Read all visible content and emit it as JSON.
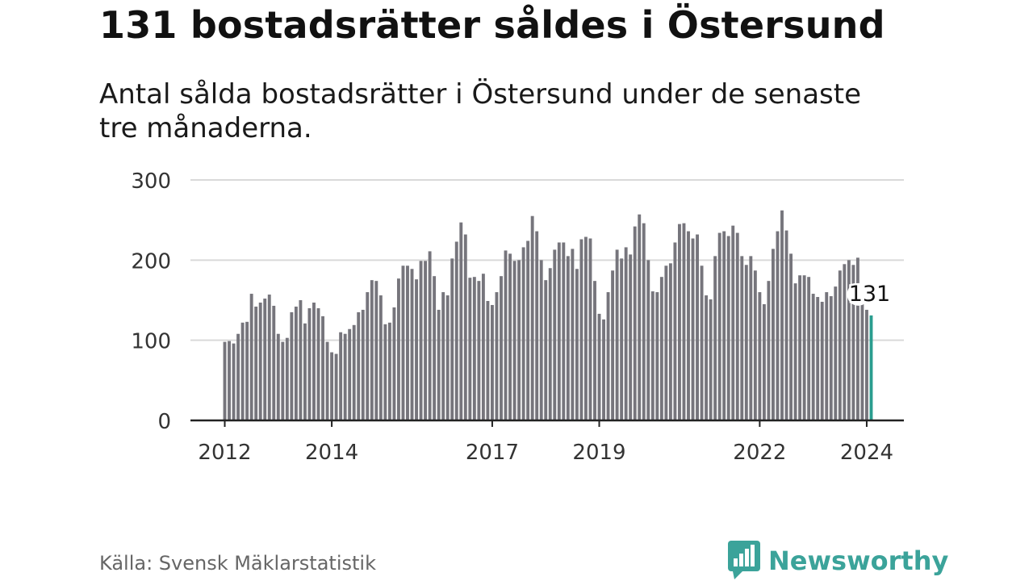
{
  "title": "131 bostadsrätter såldes i Östersund",
  "subtitle": "Antal sålda bostadsrätter i Östersund under de senaste tre månaderna.",
  "source": "Källa: Svensk Mäklarstatistik",
  "brand": {
    "name": "Newsworthy",
    "logo_icon": "bar-chart-speech-bubble-icon"
  },
  "colors": {
    "bar": "#76757c",
    "highlight": "#2a9d8f",
    "grid": "#d9d9d9",
    "axis": "#222222",
    "brand": "#3ba39a"
  },
  "chart_data": {
    "type": "bar",
    "title": "131 bostadsrätter såldes i Östersund",
    "xlabel": "",
    "ylabel": "",
    "ylim": [
      0,
      300
    ],
    "yticks": [
      0,
      100,
      200,
      300
    ],
    "ytick_labels": [
      "0",
      "100",
      "200",
      "300"
    ],
    "x_start": "2012-01",
    "frequency": "monthly",
    "xtick_labels": [
      {
        "label": "2012",
        "index": 0
      },
      {
        "label": "2014",
        "index": 24
      },
      {
        "label": "2017",
        "index": 60
      },
      {
        "label": "2019",
        "index": 84
      },
      {
        "label": "2022",
        "index": 120
      },
      {
        "label": "2024",
        "index": 144
      }
    ],
    "values": [
      98,
      99,
      96,
      108,
      122,
      123,
      158,
      142,
      147,
      152,
      157,
      143,
      108,
      98,
      103,
      135,
      142,
      150,
      121,
      140,
      147,
      140,
      130,
      98,
      85,
      83,
      110,
      108,
      114,
      119,
      135,
      138,
      160,
      175,
      174,
      156,
      120,
      122,
      141,
      177,
      193,
      193,
      189,
      176,
      199,
      199,
      211,
      180,
      138,
      160,
      156,
      202,
      223,
      247,
      232,
      178,
      179,
      174,
      183,
      149,
      144,
      160,
      180,
      212,
      208,
      199,
      200,
      216,
      224,
      255,
      236,
      200,
      175,
      190,
      213,
      222,
      222,
      205,
      214,
      189,
      226,
      229,
      227,
      174,
      133,
      126,
      160,
      187,
      213,
      202,
      216,
      207,
      242,
      257,
      246,
      200,
      161,
      160,
      179,
      193,
      196,
      222,
      245,
      246,
      236,
      227,
      232,
      193,
      156,
      151,
      205,
      234,
      236,
      230,
      243,
      234,
      205,
      194,
      205,
      187,
      160,
      145,
      174,
      214,
      236,
      262,
      237,
      208,
      171,
      181,
      181,
      179,
      158,
      154,
      148,
      160,
      155,
      167,
      187,
      195,
      200,
      194,
      203,
      145,
      138,
      131
    ],
    "highlight_last": true,
    "annotation": {
      "label": "131",
      "index": 145,
      "value": 131
    }
  }
}
